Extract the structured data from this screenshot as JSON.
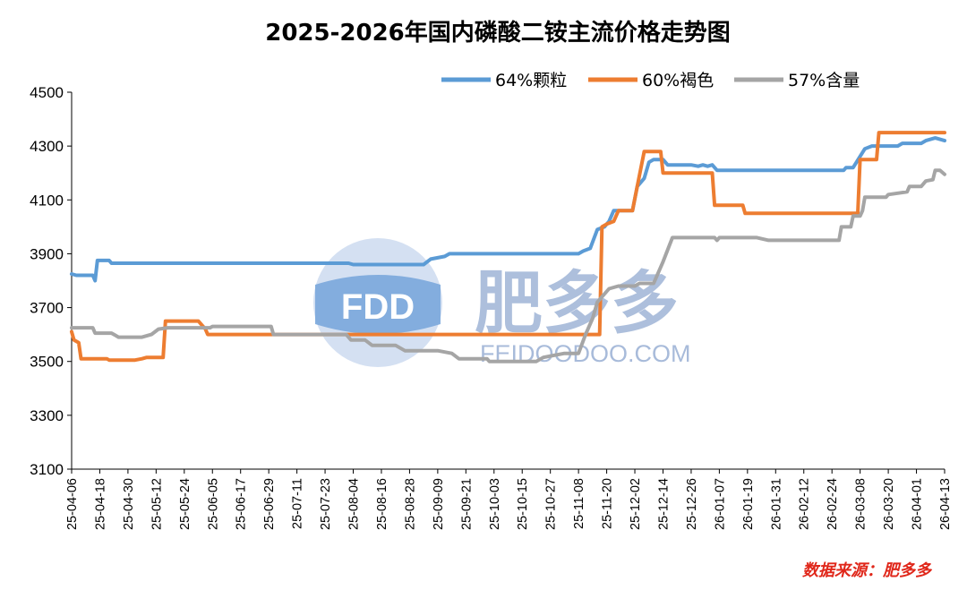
{
  "chart_data": {
    "type": "line",
    "title": "2025-2026年国内磷酸二铵主流价格走势图",
    "xlabel": "",
    "ylabel": "",
    "ylim": [
      3100,
      4500
    ],
    "yticks": [
      3100,
      3300,
      3500,
      3700,
      3900,
      4100,
      4300,
      4500
    ],
    "xlim": [
      "25-04-06",
      "26-04-13"
    ],
    "xticks": [
      "25-04-06",
      "25-04-18",
      "25-04-30",
      "25-05-12",
      "25-05-24",
      "25-06-05",
      "25-06-17",
      "25-06-29",
      "25-07-11",
      "25-07-23",
      "25-08-04",
      "25-08-16",
      "25-08-28",
      "25-09-09",
      "25-09-21",
      "25-10-03",
      "25-10-15",
      "25-10-27",
      "25-11-08",
      "25-11-20",
      "25-12-02",
      "25-12-14",
      "25-12-26",
      "26-01-07",
      "26-01-19",
      "26-01-31",
      "26-02-12",
      "26-02-24",
      "26-03-08",
      "26-03-20",
      "26-04-01",
      "26-04-13"
    ],
    "grid": false,
    "legend_position": "top-right",
    "series": [
      {
        "name": "64%颗粒",
        "color": "#5b9bd5",
        "points": [
          [
            "25-04-06",
            3825
          ],
          [
            "25-04-08",
            3820
          ],
          [
            "25-04-15",
            3820
          ],
          [
            "25-04-16",
            3800
          ],
          [
            "25-04-17",
            3875
          ],
          [
            "25-04-22",
            3875
          ],
          [
            "25-04-23",
            3865
          ],
          [
            "25-08-02",
            3865
          ],
          [
            "25-08-04",
            3860
          ],
          [
            "25-09-03",
            3860
          ],
          [
            "25-09-06",
            3880
          ],
          [
            "25-09-12",
            3890
          ],
          [
            "25-09-14",
            3900
          ],
          [
            "25-11-08",
            3900
          ],
          [
            "25-11-10",
            3910
          ],
          [
            "25-11-13",
            3920
          ],
          [
            "25-11-16",
            3990
          ],
          [
            "25-11-19",
            4000
          ],
          [
            "25-11-21",
            4020
          ],
          [
            "25-11-23",
            4060
          ],
          [
            "25-12-01",
            4060
          ],
          [
            "25-12-03",
            4150
          ],
          [
            "25-12-06",
            4180
          ],
          [
            "25-12-08",
            4240
          ],
          [
            "25-12-10",
            4250
          ],
          [
            "25-12-14",
            4250
          ],
          [
            "25-12-16",
            4230
          ],
          [
            "25-12-26",
            4230
          ],
          [
            "25-12-29",
            4225
          ],
          [
            "25-12-31",
            4230
          ],
          [
            "26-01-02",
            4225
          ],
          [
            "26-01-04",
            4230
          ],
          [
            "26-01-06",
            4210
          ],
          [
            "26-03-01",
            4210
          ],
          [
            "26-03-02",
            4220
          ],
          [
            "26-03-05",
            4220
          ],
          [
            "26-03-10",
            4290
          ],
          [
            "26-03-13",
            4300
          ],
          [
            "26-03-24",
            4300
          ],
          [
            "26-03-26",
            4310
          ],
          [
            "26-04-03",
            4310
          ],
          [
            "26-04-05",
            4320
          ],
          [
            "26-04-09",
            4330
          ],
          [
            "26-04-11",
            4325
          ],
          [
            "26-04-13",
            4320
          ]
        ]
      },
      {
        "name": "60%褐色",
        "color": "#ed7d31",
        "points": [
          [
            "25-04-06",
            3610
          ],
          [
            "25-04-07",
            3580
          ],
          [
            "25-04-09",
            3570
          ],
          [
            "25-04-10",
            3510
          ],
          [
            "25-04-21",
            3510
          ],
          [
            "25-04-22",
            3505
          ],
          [
            "25-05-03",
            3505
          ],
          [
            "25-05-06",
            3510
          ],
          [
            "25-05-08",
            3515
          ],
          [
            "25-05-15",
            3515
          ],
          [
            "25-05-16",
            3650
          ],
          [
            "25-05-30",
            3650
          ],
          [
            "25-06-02",
            3620
          ],
          [
            "25-06-03",
            3600
          ],
          [
            "25-11-17",
            3600
          ],
          [
            "25-11-18",
            4000
          ],
          [
            "25-11-20",
            4010
          ],
          [
            "25-11-23",
            4020
          ],
          [
            "25-11-25",
            4060
          ],
          [
            "25-12-01",
            4060
          ],
          [
            "25-12-03",
            4150
          ],
          [
            "25-12-06",
            4280
          ],
          [
            "25-12-13",
            4280
          ],
          [
            "25-12-14",
            4200
          ],
          [
            "26-01-04",
            4200
          ],
          [
            "26-01-05",
            4080
          ],
          [
            "26-01-17",
            4080
          ],
          [
            "26-01-18",
            4050
          ],
          [
            "26-03-07",
            4050
          ],
          [
            "26-03-08",
            4250
          ],
          [
            "26-03-15",
            4250
          ],
          [
            "26-03-16",
            4350
          ],
          [
            "26-04-13",
            4350
          ]
        ]
      },
      {
        "name": "57%含量",
        "color": "#a5a5a5",
        "points": [
          [
            "25-04-06",
            3625
          ],
          [
            "25-04-15",
            3625
          ],
          [
            "25-04-16",
            3605
          ],
          [
            "25-04-23",
            3605
          ],
          [
            "25-04-26",
            3590
          ],
          [
            "25-05-06",
            3590
          ],
          [
            "25-05-10",
            3600
          ],
          [
            "25-05-13",
            3620
          ],
          [
            "25-05-17",
            3625
          ],
          [
            "25-06-04",
            3625
          ],
          [
            "25-06-05",
            3630
          ],
          [
            "25-06-30",
            3630
          ],
          [
            "25-07-01",
            3600
          ],
          [
            "25-08-01",
            3600
          ],
          [
            "25-08-03",
            3580
          ],
          [
            "25-08-09",
            3580
          ],
          [
            "25-08-12",
            3560
          ],
          [
            "25-08-22",
            3560
          ],
          [
            "25-08-26",
            3540
          ],
          [
            "25-09-09",
            3540
          ],
          [
            "25-09-15",
            3530
          ],
          [
            "25-09-18",
            3510
          ],
          [
            "25-09-30",
            3510
          ],
          [
            "25-10-01",
            3500
          ],
          [
            "25-10-21",
            3500
          ],
          [
            "25-10-24",
            3515
          ],
          [
            "25-11-02",
            3530
          ],
          [
            "25-11-08",
            3530
          ],
          [
            "25-11-11",
            3600
          ],
          [
            "25-11-14",
            3660
          ],
          [
            "25-11-16",
            3720
          ],
          [
            "25-11-21",
            3770
          ],
          [
            "25-11-25",
            3780
          ],
          [
            "25-12-02",
            3780
          ],
          [
            "25-12-04",
            3790
          ],
          [
            "25-12-10",
            3790
          ],
          [
            "25-12-14",
            3870
          ],
          [
            "25-12-18",
            3960
          ],
          [
            "26-01-05",
            3960
          ],
          [
            "26-01-06",
            3950
          ],
          [
            "26-01-07",
            3960
          ],
          [
            "26-01-23",
            3960
          ],
          [
            "26-01-28",
            3950
          ],
          [
            "26-02-27",
            3950
          ],
          [
            "26-02-28",
            4000
          ],
          [
            "26-03-04",
            4000
          ],
          [
            "26-03-05",
            4040
          ],
          [
            "26-03-08",
            4040
          ],
          [
            "26-03-09",
            4060
          ],
          [
            "26-03-10",
            4110
          ],
          [
            "26-03-19",
            4110
          ],
          [
            "26-03-20",
            4120
          ],
          [
            "26-03-28",
            4130
          ],
          [
            "26-03-29",
            4150
          ],
          [
            "26-04-03",
            4150
          ],
          [
            "26-04-05",
            4170
          ],
          [
            "26-04-08",
            4175
          ],
          [
            "26-04-09",
            4210
          ],
          [
            "26-04-11",
            4210
          ],
          [
            "26-04-13",
            4195
          ]
        ]
      }
    ]
  },
  "watermark": {
    "logo_text": "FDD",
    "brand": "肥多多",
    "site": "FEIDOODOO.COM"
  },
  "source": "数据来源：肥多多"
}
